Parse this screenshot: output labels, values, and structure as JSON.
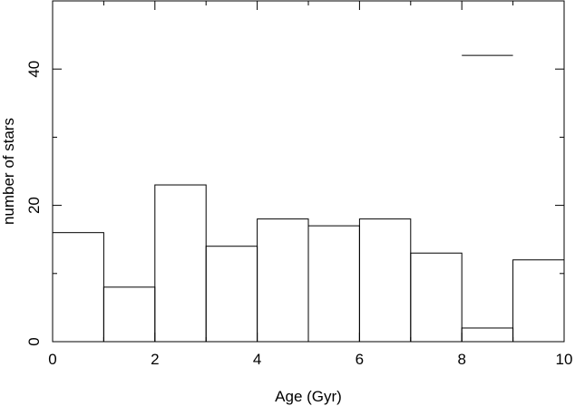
{
  "chart_data": {
    "type": "bar",
    "histogram": true,
    "bin_edges": [
      0,
      1,
      2,
      3,
      4,
      5,
      6,
      7,
      8,
      9,
      10
    ],
    "values": [
      16,
      8,
      23,
      14,
      18,
      17,
      18,
      13,
      2,
      12
    ],
    "title": "",
    "xlabel": "Age (Gyr)",
    "ylabel": "number of stars",
    "xlim": [
      0,
      10
    ],
    "ylim": [
      0,
      50
    ],
    "x_ticks": [
      0,
      2,
      4,
      6,
      8,
      10
    ],
    "x_tick_labels": [
      "0",
      "2",
      "4",
      "6",
      "8",
      "10"
    ],
    "y_ticks": [
      0,
      20,
      40
    ],
    "y_tick_labels": [
      "0",
      "20",
      "40"
    ],
    "y_minor_ticks": [
      10,
      30
    ],
    "grid": false,
    "legend_line": {
      "x": [
        8,
        9
      ],
      "y": 42
    },
    "colors": {
      "stroke": "#000000",
      "background": "#ffffff"
    }
  }
}
